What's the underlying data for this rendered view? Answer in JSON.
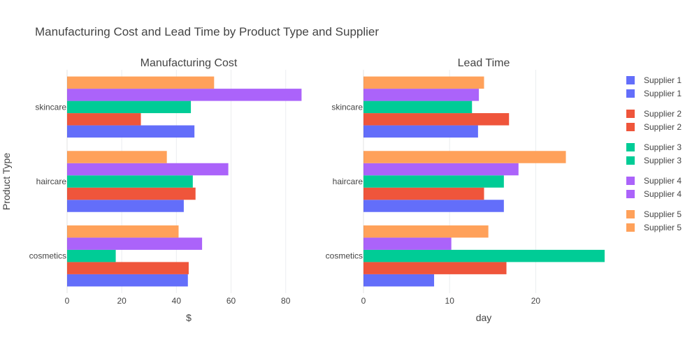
{
  "title": "Manufacturing Cost and Lead Time by Product Type and Supplier",
  "y_axis_title": "Product Type",
  "colors": {
    "Supplier 1": "#636efa",
    "Supplier 2": "#ef553b",
    "Supplier 3": "#00cc96",
    "Supplier 4": "#ab63fa",
    "Supplier 5": "#ffa15a"
  },
  "legend": [
    {
      "label": "Supplier 1",
      "series": "Supplier 1"
    },
    {
      "label": "Supplier 1",
      "series": "Supplier 1"
    },
    {
      "label": "Supplier 2",
      "series": "Supplier 2"
    },
    {
      "label": "Supplier 2",
      "series": "Supplier 2"
    },
    {
      "label": "Supplier 3",
      "series": "Supplier 3"
    },
    {
      "label": "Supplier 3",
      "series": "Supplier 3"
    },
    {
      "label": "Supplier 4",
      "series": "Supplier 4"
    },
    {
      "label": "Supplier 4",
      "series": "Supplier 4"
    },
    {
      "label": "Supplier 5",
      "series": "Supplier 5"
    },
    {
      "label": "Supplier 5",
      "series": "Supplier 5"
    }
  ],
  "chart_data": [
    {
      "type": "bar",
      "orientation": "horizontal",
      "title": "Manufacturing Cost",
      "xlabel": "$",
      "ylabel": "Product Type",
      "categories": [
        "cosmetics",
        "haircare",
        "skincare"
      ],
      "xlim": [
        0,
        88
      ],
      "xticks": [
        0,
        20,
        40,
        60,
        80
      ],
      "grid": true,
      "legend_position": "right",
      "series": [
        {
          "name": "Supplier 1",
          "values": [
            44.2,
            42.7,
            46.6
          ]
        },
        {
          "name": "Supplier 2",
          "values": [
            44.5,
            47.0,
            27.0
          ]
        },
        {
          "name": "Supplier 3",
          "values": [
            17.8,
            46.0,
            45.3
          ]
        },
        {
          "name": "Supplier 4",
          "values": [
            49.4,
            59.0,
            85.8
          ]
        },
        {
          "name": "Supplier 5",
          "values": [
            40.8,
            36.5,
            53.8
          ]
        }
      ]
    },
    {
      "type": "bar",
      "orientation": "horizontal",
      "title": "Lead Time",
      "xlabel": "day",
      "ylabel": "",
      "categories": [
        "cosmetics",
        "haircare",
        "skincare"
      ],
      "xlim": [
        0,
        28
      ],
      "xticks": [
        0,
        10,
        20
      ],
      "grid": true,
      "legend_position": "right",
      "series": [
        {
          "name": "Supplier 1",
          "values": [
            8.2,
            16.3,
            13.3
          ]
        },
        {
          "name": "Supplier 2",
          "values": [
            16.6,
            14.0,
            16.9
          ]
        },
        {
          "name": "Supplier 3",
          "values": [
            28.0,
            16.3,
            12.6
          ]
        },
        {
          "name": "Supplier 4",
          "values": [
            10.2,
            18.0,
            13.4
          ]
        },
        {
          "name": "Supplier 5",
          "values": [
            14.5,
            23.5,
            14.0
          ]
        }
      ]
    }
  ]
}
